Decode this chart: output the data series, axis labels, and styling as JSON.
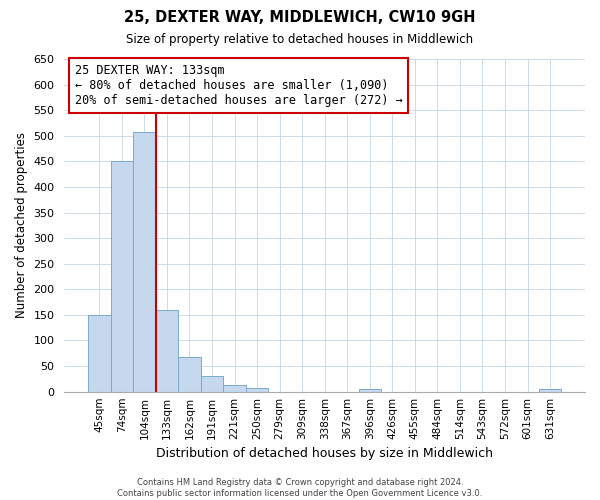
{
  "title": "25, DEXTER WAY, MIDDLEWICH, CW10 9GH",
  "subtitle": "Size of property relative to detached houses in Middlewich",
  "xlabel": "Distribution of detached houses by size in Middlewich",
  "ylabel": "Number of detached properties",
  "footer_line1": "Contains HM Land Registry data © Crown copyright and database right 2024.",
  "footer_line2": "Contains public sector information licensed under the Open Government Licence v3.0.",
  "bin_labels": [
    "45sqm",
    "74sqm",
    "104sqm",
    "133sqm",
    "162sqm",
    "191sqm",
    "221sqm",
    "250sqm",
    "279sqm",
    "309sqm",
    "338sqm",
    "367sqm",
    "396sqm",
    "426sqm",
    "455sqm",
    "484sqm",
    "514sqm",
    "543sqm",
    "572sqm",
    "601sqm",
    "631sqm"
  ],
  "bar_heights": [
    150,
    450,
    507,
    160,
    67,
    30,
    13,
    8,
    0,
    0,
    0,
    0,
    5,
    0,
    0,
    0,
    0,
    0,
    0,
    0,
    5
  ],
  "bar_color": "#c5d8ed",
  "bar_edge_color": "#7aaacc",
  "vline_color": "#cc0000",
  "ylim": [
    0,
    650
  ],
  "yticks": [
    0,
    50,
    100,
    150,
    200,
    250,
    300,
    350,
    400,
    450,
    500,
    550,
    600,
    650
  ],
  "annotation_title": "25 DEXTER WAY: 133sqm",
  "annotation_line1": "← 80% of detached houses are smaller (1,090)",
  "annotation_line2": "20% of semi-detached houses are larger (272) →",
  "annotation_box_color": "#ffffff",
  "annotation_box_edge": "#cc0000",
  "background_color": "#ffffff",
  "grid_color": "#c8d4e4"
}
